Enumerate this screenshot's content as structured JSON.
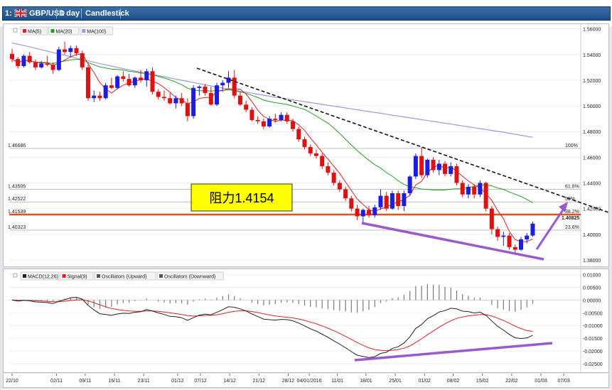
{
  "window": {
    "index": "1:",
    "symbol": "GBP/USD",
    "timeframe": "1 day",
    "chart_style": "Candlestick"
  },
  "colors": {
    "bull": "#1d1de0",
    "bear": "#e01010",
    "ma5": "#e02020",
    "ma20": "#22a022",
    "ma100": "#9999e6",
    "resistance": "#e84f10",
    "purple": "#9b59d0",
    "macd": "#222222",
    "signal": "#e02020"
  },
  "price_legend": [
    "MA(5)",
    "MA(20)",
    "MA(100)"
  ],
  "osc_legend": [
    "MACD(12,26)",
    "Signal(9)",
    "Oscillators (Upward)",
    "Oscillators (Downward)"
  ],
  "annotation_label": "阻力1.4154",
  "chart_data": [
    {
      "type": "candlestick",
      "title": "GBP/USD 1 day",
      "y_ticks": [
        "1.56000",
        "1.54000",
        "1.52000",
        "1.50000",
        "1.48000",
        "1.46000",
        "1.44000",
        "1.42000",
        "1.40000",
        "1.38000"
      ],
      "ylim": [
        1.375,
        1.562
      ],
      "x_ticks": [
        "22/10",
        "02/11",
        "09/11",
        "16/11",
        "23/11",
        "01/12",
        "07/12",
        "14/12",
        "21/12",
        "28/12",
        "04/01/2016",
        "11/01",
        "18/01",
        "25/01",
        "01/02",
        "08/02",
        "15/02",
        "22/02",
        "01/03",
        "07/03"
      ],
      "left_levels": [
        {
          "label": "1.46686",
          "value": 1.46686
        },
        {
          "label": "1.43505",
          "value": 1.43505
        },
        {
          "label": "1.42522",
          "value": 1.42522
        },
        {
          "label": "1.41539",
          "value": 1.41539
        },
        {
          "label": "1.40323",
          "value": 1.40323
        }
      ],
      "fib_levels": [
        {
          "label": "100%",
          "value": 1.46686
        },
        {
          "label": "61.8%",
          "value": 1.43505
        },
        {
          "label": "50%",
          "value": 1.42522
        },
        {
          "label": "38.2%",
          "value": 1.41539
        },
        {
          "label": "23.6%",
          "value": 1.40323
        }
      ],
      "last_price": {
        "label": "1.40825",
        "value": 1.40825
      },
      "resistance": 1.4154,
      "candles": [
        [
          1.5405,
          1.5445,
          1.534,
          1.5365
        ],
        [
          1.5365,
          1.538,
          1.529,
          1.531
        ],
        [
          1.531,
          1.54,
          1.53,
          1.539
        ],
        [
          1.539,
          1.542,
          1.533,
          1.534
        ],
        [
          1.534,
          1.536,
          1.528,
          1.53
        ],
        [
          1.53,
          1.535,
          1.529,
          1.533
        ],
        [
          1.533,
          1.539,
          1.531,
          1.532
        ],
        [
          1.532,
          1.534,
          1.525,
          1.528
        ],
        [
          1.528,
          1.546,
          1.527,
          1.544
        ],
        [
          1.544,
          1.55,
          1.54,
          1.542
        ],
        [
          1.542,
          1.547,
          1.538,
          1.545
        ],
        [
          1.545,
          1.547,
          1.539,
          1.541
        ],
        [
          1.541,
          1.543,
          1.528,
          1.53
        ],
        [
          1.53,
          1.532,
          1.504,
          1.506
        ],
        [
          1.506,
          1.512,
          1.503,
          1.508
        ],
        [
          1.508,
          1.511,
          1.504,
          1.506
        ],
        [
          1.506,
          1.518,
          1.505,
          1.516
        ],
        [
          1.516,
          1.522,
          1.513,
          1.514
        ],
        [
          1.514,
          1.524,
          1.513,
          1.523
        ],
        [
          1.523,
          1.527,
          1.519,
          1.521
        ],
        [
          1.521,
          1.525,
          1.515,
          1.516
        ],
        [
          1.516,
          1.523,
          1.514,
          1.522
        ],
        [
          1.522,
          1.528,
          1.518,
          1.52
        ],
        [
          1.52,
          1.529,
          1.515,
          1.527
        ],
        [
          1.527,
          1.53,
          1.509,
          1.511
        ],
        [
          1.511,
          1.513,
          1.505,
          1.507
        ],
        [
          1.507,
          1.512,
          1.504,
          1.506
        ],
        [
          1.506,
          1.51,
          1.501,
          1.502
        ],
        [
          1.502,
          1.508,
          1.498,
          1.506
        ],
        [
          1.506,
          1.51,
          1.5,
          1.502
        ],
        [
          1.502,
          1.506,
          1.488,
          1.492
        ],
        [
          1.492,
          1.516,
          1.49,
          1.514
        ],
        [
          1.514,
          1.516,
          1.508,
          1.515
        ],
        [
          1.515,
          1.517,
          1.508,
          1.51
        ],
        [
          1.51,
          1.515,
          1.5,
          1.501
        ],
        [
          1.501,
          1.518,
          1.5,
          1.516
        ],
        [
          1.516,
          1.52,
          1.511,
          1.518
        ],
        [
          1.518,
          1.527,
          1.514,
          1.522
        ],
        [
          1.522,
          1.528,
          1.506,
          1.508
        ],
        [
          1.508,
          1.511,
          1.5,
          1.501
        ],
        [
          1.501,
          1.504,
          1.495,
          1.497
        ],
        [
          1.497,
          1.499,
          1.488,
          1.489
        ],
        [
          1.489,
          1.492,
          1.486,
          1.488
        ],
        [
          1.488,
          1.49,
          1.482,
          1.484
        ],
        [
          1.484,
          1.492,
          1.483,
          1.49
        ],
        [
          1.49,
          1.494,
          1.487,
          1.489
        ],
        [
          1.489,
          1.495,
          1.488,
          1.493
        ],
        [
          1.493,
          1.495,
          1.486,
          1.488
        ],
        [
          1.488,
          1.49,
          1.48,
          1.482
        ],
        [
          1.482,
          1.484,
          1.472,
          1.474
        ],
        [
          1.474,
          1.476,
          1.466,
          1.468
        ],
        [
          1.468,
          1.47,
          1.461,
          1.463
        ],
        [
          1.463,
          1.466,
          1.459,
          1.461
        ],
        [
          1.461,
          1.463,
          1.451,
          1.453
        ],
        [
          1.453,
          1.456,
          1.446,
          1.448
        ],
        [
          1.448,
          1.45,
          1.438,
          1.44
        ],
        [
          1.44,
          1.442,
          1.433,
          1.435
        ],
        [
          1.435,
          1.437,
          1.426,
          1.428
        ],
        [
          1.428,
          1.43,
          1.418,
          1.42
        ],
        [
          1.42,
          1.423,
          1.411,
          1.414
        ],
        [
          1.414,
          1.42,
          1.408,
          1.419
        ],
        [
          1.419,
          1.422,
          1.413,
          1.415
        ],
        [
          1.415,
          1.423,
          1.413,
          1.421
        ],
        [
          1.421,
          1.435,
          1.419,
          1.43
        ],
        [
          1.43,
          1.433,
          1.418,
          1.42
        ],
        [
          1.42,
          1.434,
          1.419,
          1.432
        ],
        [
          1.432,
          1.434,
          1.419,
          1.422
        ],
        [
          1.422,
          1.434,
          1.418,
          1.432
        ],
        [
          1.432,
          1.446,
          1.43,
          1.445
        ],
        [
          1.445,
          1.463,
          1.443,
          1.461
        ],
        [
          1.461,
          1.468,
          1.444,
          1.446
        ],
        [
          1.446,
          1.459,
          1.444,
          1.458
        ],
        [
          1.458,
          1.46,
          1.448,
          1.45
        ],
        [
          1.45,
          1.458,
          1.446,
          1.455
        ],
        [
          1.455,
          1.457,
          1.445,
          1.447
        ],
        [
          1.447,
          1.456,
          1.445,
          1.453
        ],
        [
          1.453,
          1.455,
          1.438,
          1.44
        ],
        [
          1.44,
          1.442,
          1.429,
          1.431
        ],
        [
          1.431,
          1.439,
          1.428,
          1.437
        ],
        [
          1.437,
          1.439,
          1.428,
          1.431
        ],
        [
          1.431,
          1.442,
          1.429,
          1.44
        ],
        [
          1.44,
          1.441,
          1.418,
          1.42
        ],
        [
          1.42,
          1.422,
          1.4,
          1.404
        ],
        [
          1.404,
          1.406,
          1.395,
          1.398
        ],
        [
          1.398,
          1.402,
          1.391,
          1.399
        ],
        [
          1.399,
          1.401,
          1.388,
          1.39
        ],
        [
          1.39,
          1.392,
          1.385,
          1.388
        ],
        [
          1.388,
          1.398,
          1.387,
          1.396
        ],
        [
          1.396,
          1.401,
          1.393,
          1.399
        ],
        [
          1.399,
          1.41,
          1.398,
          1.4083
        ]
      ],
      "ma100": [
        1.549,
        1.548,
        1.547,
        1.546,
        1.5449,
        1.5438,
        1.5427,
        1.5416,
        1.5405,
        1.5394,
        1.5383,
        1.5372,
        1.5361,
        1.535,
        1.534,
        1.533,
        1.532,
        1.531,
        1.53,
        1.529,
        1.5281,
        1.5272,
        1.5263,
        1.5254,
        1.5245,
        1.5236,
        1.5227,
        1.5218,
        1.5209,
        1.52,
        1.5191,
        1.5182,
        1.5173,
        1.5164,
        1.5155,
        1.5147,
        1.5139,
        1.5131,
        1.5123,
        1.5115,
        1.5107,
        1.5099,
        1.5091,
        1.5083,
        1.5075,
        1.5068,
        1.5061,
        1.5054,
        1.5047,
        1.504,
        1.5033,
        1.5026,
        1.5019,
        1.5012,
        1.5005,
        1.4998,
        1.4991,
        1.4984,
        1.4977,
        1.497,
        1.4963,
        1.4956,
        1.4949,
        1.4942,
        1.4935,
        1.4928,
        1.4921,
        1.4914,
        1.4907,
        1.49,
        1.4893,
        1.4886,
        1.4879,
        1.4872,
        1.4865,
        1.4858,
        1.4851,
        1.4844,
        1.4837,
        1.483,
        1.4823,
        1.4816,
        1.4809,
        1.4802,
        1.4795,
        1.4787,
        1.4779,
        1.4771,
        1.4763,
        1.4755
      ],
      "macd_ylim": [
        -0.027,
        0.011
      ],
      "macd_ticks": [
        "0.01000",
        "0.00500",
        "0.00000",
        "-0.00500",
        "-0.01000",
        "-0.01500",
        "-0.02000",
        "-0.02500"
      ]
    }
  ]
}
